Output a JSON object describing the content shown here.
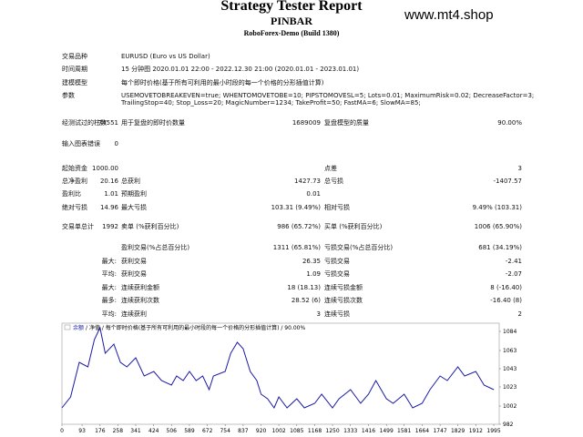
{
  "header": {
    "title": "Strategy Tester Report",
    "subtitle": "PINBAR",
    "server": "RoboForex-Demo (Build 1380)",
    "watermark": "www.mt4.shop"
  },
  "table": {
    "rows": [
      {
        "label": "交易品种",
        "wide": "EURUSD (Euro vs US Dollar)"
      },
      {
        "label": "时间周期",
        "wide": "15 分钟图 2020.01.01 22:00 - 2022.12.30 21:00 (2020.01.01 - 2023.01.01)"
      },
      {
        "label": "建模模型",
        "wide": "每个即时价格(基于所有可利用的最小时段的每一个价格的分形插值计算)"
      },
      {
        "label": "参数",
        "wide": "USEMOVETOBREAKEVEN=true; WHENTOMOVETOBE=10; PIPSTOMOVESL=5; Lots=0.01; MaximumRisk=0.02; DecreaseFactor=3; TrailingStop=40; Stop_Loss=20; MagicNumber=1234; TakeProfit=50; FastMA=6; SlowMA=85;"
      },
      {
        "label": "经测试过的柱数",
        "value": "74551",
        "label2": "用于复盘的即时价数量",
        "value2": "1689009",
        "label3": "复盘模型的质量",
        "value3": "90.00%"
      },
      {
        "label": "输入图表错误",
        "value": "0"
      },
      {
        "label": "起始资金",
        "value": "1000.00",
        "label3": "点差",
        "value3": "3"
      },
      {
        "label": "总净盈利",
        "value": "20.16",
        "label2": "总获利",
        "value2": "1427.73",
        "label3": "总亏损",
        "value3": "-1407.57"
      },
      {
        "label": "盈利比",
        "value": "1.01",
        "label2": "预期盈利",
        "value2": "0.01"
      },
      {
        "label": "绝对亏损",
        "value": "14.96",
        "label2": "最大亏损",
        "value2": "103.31 (9.49%)",
        "label3": "相对亏损",
        "value3": "9.49% (103.31)"
      },
      {
        "label": "交易单总计",
        "value": "1992",
        "label2": "卖单 (%获利百分比)",
        "value2": "986 (65.72%)",
        "label3": "买单 (%获利百分比)",
        "value3": "1006 (65.90%)"
      },
      {
        "label2": "盈利交易(%占总百分比)",
        "value2": "1311 (65.81%)",
        "label3": "亏损交易(%占总百分比)",
        "value3": "681 (34.19%)"
      },
      {
        "group": "最大:",
        "label2": "获利交易",
        "value2": "26.35",
        "label3": "亏损交易",
        "value3": "-2.41"
      },
      {
        "group": "平均:",
        "label2": "获利交易",
        "value2": "1.09",
        "label3": "亏损交易",
        "value3": "-2.07"
      },
      {
        "group": "最大:",
        "label2": "连续获利金额",
        "value2": "18 (18.13)",
        "label3": "连续亏损金额",
        "value3": "8 (-16.40)"
      },
      {
        "group": "最多:",
        "label2": "连续获利次数",
        "value2": "28.52 (6)",
        "label3": "连续亏损次数",
        "value3": "-16.40 (8)"
      },
      {
        "group": "平均:",
        "label2": "连续获利",
        "value2": "3",
        "label3": "连续亏损",
        "value3": "2"
      }
    ]
  },
  "chart_data": {
    "type": "line",
    "legend_note": "/ 净值 / 每个即时价格(基于所有可利用的最小时段的每一个价格的分形插值计算) / 90.00%",
    "x": [
      0,
      40,
      80,
      120,
      150,
      176,
      200,
      240,
      270,
      300,
      341,
      380,
      424,
      460,
      506,
      530,
      560,
      589,
      620,
      650,
      680,
      700,
      754,
      780,
      810,
      837,
      870,
      900,
      920,
      950,
      980,
      1002,
      1040,
      1085,
      1120,
      1168,
      1200,
      1250,
      1280,
      1333,
      1380,
      1416,
      1450,
      1499,
      1530,
      1581,
      1620,
      1664,
      1700,
      1747,
      1780,
      1829,
      1860,
      1912,
      1950,
      1995
    ],
    "series": [
      {
        "name": "余额",
        "color": "#1a1aa6",
        "values": [
          1000,
          1012,
          1050,
          1045,
          1075,
          1088,
          1060,
          1070,
          1050,
          1045,
          1055,
          1035,
          1040,
          1030,
          1025,
          1035,
          1030,
          1040,
          1030,
          1035,
          1020,
          1035,
          1040,
          1060,
          1072,
          1065,
          1040,
          1030,
          1015,
          1010,
          1000,
          1012,
          1000,
          1010,
          1000,
          1005,
          1015,
          1000,
          1010,
          1020,
          1005,
          1015,
          1030,
          1010,
          1005,
          1015,
          1000,
          1005,
          1020,
          1035,
          1030,
          1045,
          1035,
          1040,
          1025,
          1020
        ]
      }
    ],
    "xlim": [
      0,
      2020
    ],
    "ylim": [
      982,
      1093
    ],
    "xticks": [
      0,
      93,
      176,
      258,
      341,
      424,
      506,
      589,
      672,
      754,
      837,
      920,
      1002,
      1085,
      1168,
      1250,
      1333,
      1416,
      1499,
      1581,
      1664,
      1747,
      1829,
      1912,
      1995
    ],
    "yticks": [
      982,
      1002,
      1023,
      1043,
      1063,
      1084
    ]
  }
}
